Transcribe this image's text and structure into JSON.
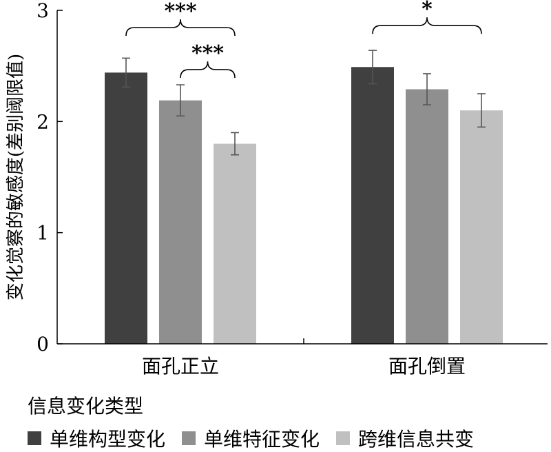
{
  "chart_data": {
    "type": "bar",
    "title": "",
    "ylabel": "变化觉察的敏感度(差别阈限值)",
    "xlabel": "",
    "ylim": [
      0,
      3
    ],
    "yticks": [
      "0",
      "1",
      "2",
      "3"
    ],
    "yticks_values": [
      0,
      1,
      2,
      3
    ],
    "categories": [
      "面孔正立",
      "面孔倒置"
    ],
    "legend_title": "信息变化类型",
    "legend_position": "bottom",
    "grid": false,
    "series": [
      {
        "name": "单维构型变化",
        "color": "#404040",
        "values": [
          2.44,
          2.49
        ],
        "error": [
          0.13,
          0.15
        ]
      },
      {
        "name": "单维特征变化",
        "color": "#8f8f8f",
        "values": [
          2.19,
          2.29
        ],
        "error": [
          0.14,
          0.14
        ]
      },
      {
        "name": "跨维信息共变",
        "color": "#c0c0c0",
        "values": [
          1.8,
          2.1
        ],
        "error": [
          0.1,
          0.15
        ]
      }
    ],
    "annotations": [
      {
        "category": 0,
        "from_series": 0,
        "to_series": 2,
        "label": "***",
        "level": 2
      },
      {
        "category": 0,
        "from_series": 1,
        "to_series": 2,
        "label": "***",
        "level": 1
      },
      {
        "category": 1,
        "from_series": 0,
        "to_series": 2,
        "label": "*",
        "level": 2
      }
    ]
  }
}
